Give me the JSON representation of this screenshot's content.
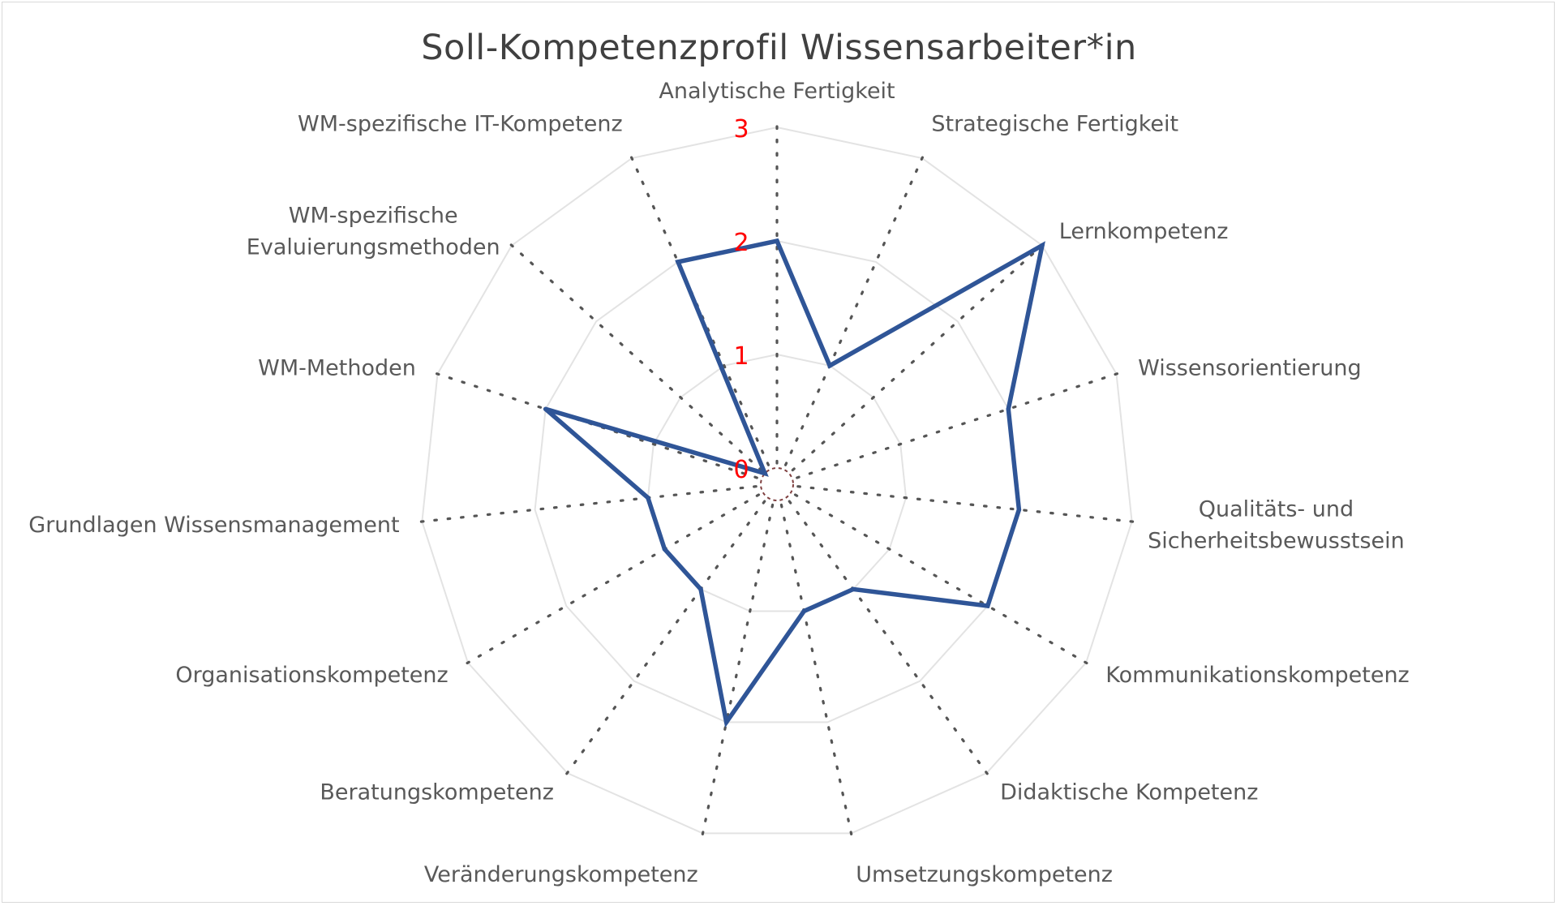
{
  "chart_data": {
    "type": "radar",
    "title": "Soll-Kompetenzprofil Wissensarbeiter*in",
    "categories": [
      "Analytische Fertigkeit",
      "Strategische Fertigkeit",
      "Lernkompetenz",
      "Wissensorientierung",
      "Qualitäts- und Sicherheitsbewusstsein",
      "Kommunikationskompetenz",
      "Didaktische Kompetenz",
      "Umsetzungskompetenz",
      "Veränderungskompetenz",
      "Beratungskompetenz",
      "Organisationskompetenz",
      "Grundlagen Wissensmanagement",
      "WM-Methoden",
      "WM-spezifische Evaluierungsmethoden",
      "WM-spezifische IT-Kompetenz"
    ],
    "category_lines": [
      [
        "Analytische Fertigkeit"
      ],
      [
        "Strategische Fertigkeit"
      ],
      [
        "Lernkompetenz"
      ],
      [
        "Wissensorientierung"
      ],
      [
        "Qualitäts- und",
        "Sicherheitsbewusstsein"
      ],
      [
        "Kommunikationskompetenz"
      ],
      [
        "Didaktische Kompetenz"
      ],
      [
        "Umsetzungskompetenz"
      ],
      [
        "Veränderungskompetenz"
      ],
      [
        "Beratungskompetenz"
      ],
      [
        "Organisationskompetenz"
      ],
      [
        "Grundlagen Wissensmanagement"
      ],
      [
        "WM-Methoden"
      ],
      [
        "WM-spezifische",
        "Evaluierungsmethoden"
      ],
      [
        "WM-spezifische IT-Kompetenz"
      ]
    ],
    "series": [
      {
        "values": [
          2,
          1,
          3,
          2,
          2,
          2,
          1,
          1,
          2,
          1,
          1,
          1,
          2,
          0,
          2
        ],
        "color": "#2f5597"
      }
    ],
    "rlim": [
      0,
      3
    ],
    "ticks": [
      "0",
      "1",
      "2",
      "3"
    ],
    "tick_color": "#ff0000",
    "grid": true,
    "legend": "none"
  }
}
